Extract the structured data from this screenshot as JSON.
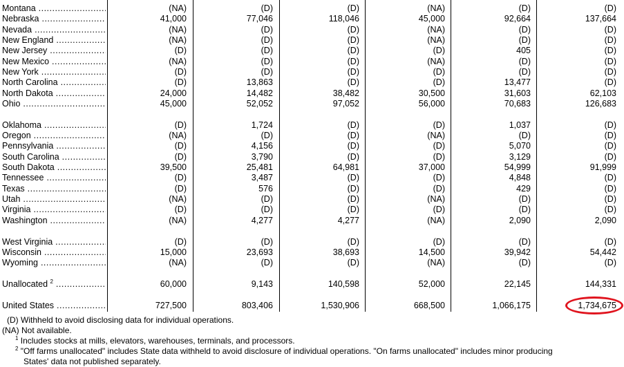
{
  "table": {
    "rows": [
      {
        "state": "Montana",
        "values": [
          "(NA)",
          "(D)",
          "(D)",
          "(NA)",
          "(D)",
          "(D)"
        ]
      },
      {
        "state": "Nebraska",
        "values": [
          "41,000",
          "77,046",
          "118,046",
          "45,000",
          "92,664",
          "137,664"
        ]
      },
      {
        "state": "Nevada",
        "values": [
          "(NA)",
          "(D)",
          "(D)",
          "(NA)",
          "(D)",
          "(D)"
        ]
      },
      {
        "state": "New England",
        "values": [
          "(NA)",
          "(D)",
          "(D)",
          "(NA)",
          "(D)",
          "(D)"
        ]
      },
      {
        "state": "New Jersey",
        "values": [
          "(D)",
          "(D)",
          "(D)",
          "(D)",
          "405",
          "(D)"
        ]
      },
      {
        "state": "New Mexico",
        "values": [
          "(NA)",
          "(D)",
          "(D)",
          "(NA)",
          "(D)",
          "(D)"
        ]
      },
      {
        "state": "New York",
        "values": [
          "(D)",
          "(D)",
          "(D)",
          "(D)",
          "(D)",
          "(D)"
        ]
      },
      {
        "state": "North Carolina",
        "values": [
          "(D)",
          "13,863",
          "(D)",
          "(D)",
          "13,477",
          "(D)"
        ]
      },
      {
        "state": "North Dakota",
        "values": [
          "24,000",
          "14,482",
          "38,482",
          "30,500",
          "31,603",
          "62,103"
        ]
      },
      {
        "state": "Ohio",
        "values": [
          "45,000",
          "52,052",
          "97,052",
          "56,000",
          "70,683",
          "126,683"
        ]
      },
      {
        "state": "Oklahoma",
        "values": [
          "(D)",
          "1,724",
          "(D)",
          "(D)",
          "1,037",
          "(D)"
        ]
      },
      {
        "state": "Oregon",
        "values": [
          "(NA)",
          "(D)",
          "(D)",
          "(NA)",
          "(D)",
          "(D)"
        ]
      },
      {
        "state": "Pennsylvania",
        "values": [
          "(D)",
          "4,156",
          "(D)",
          "(D)",
          "5,070",
          "(D)"
        ]
      },
      {
        "state": "South Carolina",
        "values": [
          "(D)",
          "3,790",
          "(D)",
          "(D)",
          "3,129",
          "(D)"
        ]
      },
      {
        "state": "South Dakota",
        "values": [
          "39,500",
          "25,481",
          "64,981",
          "37,000",
          "54,999",
          "91,999"
        ]
      },
      {
        "state": "Tennessee",
        "values": [
          "(D)",
          "3,487",
          "(D)",
          "(D)",
          "4,848",
          "(D)"
        ]
      },
      {
        "state": "Texas",
        "values": [
          "(D)",
          "576",
          "(D)",
          "(D)",
          "429",
          "(D)"
        ]
      },
      {
        "state": "Utah",
        "values": [
          "(NA)",
          "(D)",
          "(D)",
          "(NA)",
          "(D)",
          "(D)"
        ]
      },
      {
        "state": "Virginia",
        "values": [
          "(D)",
          "(D)",
          "(D)",
          "(D)",
          "(D)",
          "(D)"
        ]
      },
      {
        "state": "Washington",
        "values": [
          "(NA)",
          "4,277",
          "4,277",
          "(NA)",
          "2,090",
          "2,090"
        ]
      },
      {
        "state": "West Virginia",
        "values": [
          "(D)",
          "(D)",
          "(D)",
          "(D)",
          "(D)",
          "(D)"
        ]
      },
      {
        "state": "Wisconsin",
        "values": [
          "15,000",
          "23,693",
          "38,693",
          "14,500",
          "39,942",
          "54,442"
        ]
      },
      {
        "state": "Wyoming",
        "values": [
          "(NA)",
          "(D)",
          "(D)",
          "(NA)",
          "(D)",
          "(D)"
        ]
      },
      {
        "state": "Unallocated",
        "sup": "2",
        "values": [
          "60,000",
          "9,143",
          "140,598",
          "52,000",
          "22,145",
          "144,331"
        ]
      },
      {
        "state": "United States",
        "values": [
          "727,500",
          "803,406",
          "1,530,906",
          "668,500",
          "1,066,175",
          "1,734,675"
        ]
      }
    ]
  },
  "footnotes": {
    "d_prefix": "(D)",
    "d_text": "Withheld to avoid disclosing data for individual operations.",
    "na_prefix": "(NA)",
    "na_text": "Not available.",
    "fn1_mark": "1",
    "fn1_text": "Includes stocks at mills, elevators, warehouses, terminals, and processors.",
    "fn2_mark": "2",
    "fn2_text": "\"Off farms unallocated\" includes State data withheld to avoid disclosure of individual operations. \"On farms unallocated\" includes minor producing",
    "fn2_cont": "States' data not published separately."
  },
  "highlight": {
    "color": "#e0141e",
    "target": "1,734,675"
  }
}
